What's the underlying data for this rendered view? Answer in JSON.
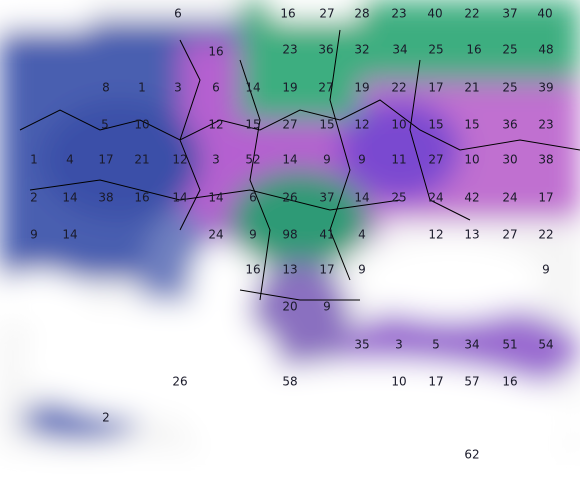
{
  "labels": [
    6,
    16,
    27,
    28,
    23,
    40,
    22,
    37,
    40,
    16,
    23,
    36,
    32,
    34,
    25,
    16,
    25,
    48,
    8,
    1,
    3,
    6,
    14,
    19,
    27,
    19,
    22,
    17,
    21,
    25,
    39,
    5,
    10,
    12,
    15,
    27,
    15,
    12,
    10,
    15,
    15,
    36,
    23,
    1,
    4,
    17,
    21,
    12,
    3,
    52,
    14,
    9,
    9,
    11,
    27,
    10,
    30,
    38,
    2,
    14,
    38,
    16,
    14,
    14,
    6,
    26,
    37,
    14,
    25,
    24,
    42,
    24,
    17,
    9,
    14,
    24,
    9,
    98,
    41,
    4,
    12,
    13,
    27,
    22,
    16,
    13,
    17,
    9,
    9,
    20,
    9,
    35,
    3,
    5,
    34,
    51,
    54,
    26,
    58,
    10,
    17,
    57,
    16,
    2,
    62
  ]
}
